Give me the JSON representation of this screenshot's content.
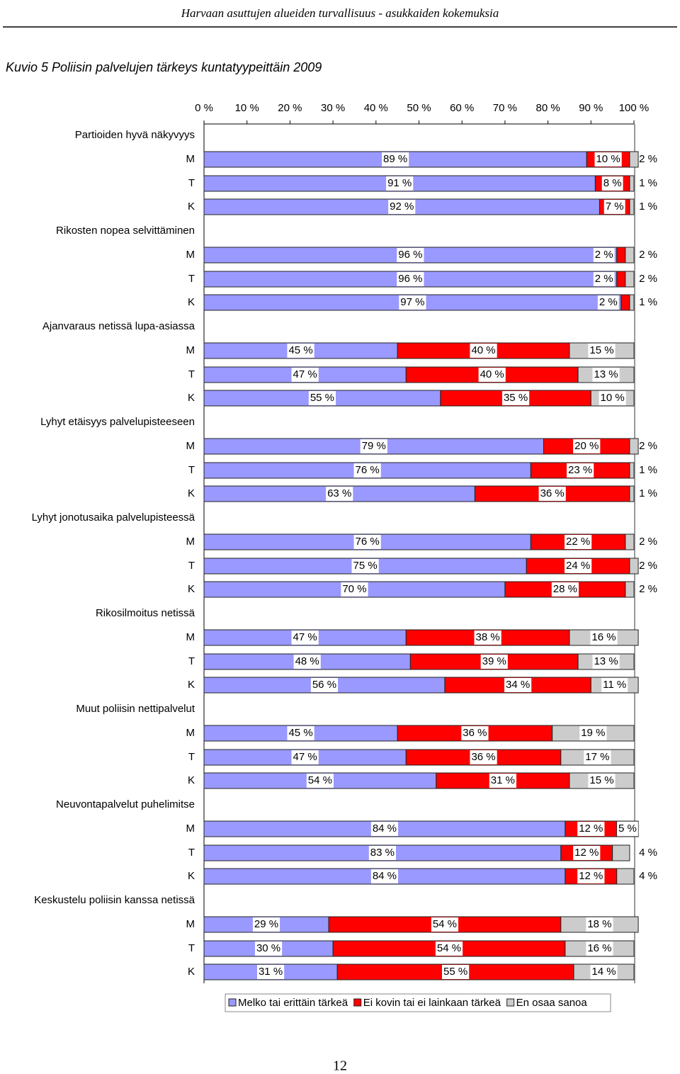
{
  "page_header": "Harvaan asuttujen alueiden turvallisuus - asukkaiden kokemuksia",
  "page_number": "12",
  "chart_data": {
    "type": "stacked-bar-horizontal",
    "title": "Kuvio 5 Poliisin palvelujen tärkeys kuntatyypeittäin 2009",
    "groups": [
      "Partioiden hyvä näkyvyys",
      "Rikosten nopea selvittäminen",
      "Ajanvaraus netissä lupa-asiassa",
      "Lyhyt etäisyys palvelupisteeseen",
      "Lyhyt jonotusaika palvelupisteessä",
      "Rikosilmoitus netissä",
      "Muut poliisin nettipalvelut",
      "Neuvontapalvelut puhelimitse",
      "Keskustelu poliisin kanssa netissä"
    ],
    "categories": [
      "M",
      "T",
      "K",
      "M",
      "T",
      "K",
      "M",
      "T",
      "K",
      "M",
      "T",
      "K",
      "M",
      "T",
      "K",
      "M",
      "T",
      "K",
      "M",
      "T",
      "K",
      "M",
      "T",
      "K",
      "M",
      "T",
      "K"
    ],
    "xlim": [
      0,
      100
    ],
    "xticks": [
      {
        "value": 0,
        "label": "0 %"
      },
      {
        "value": 10,
        "label": "10 %"
      },
      {
        "value": 20,
        "label": "20 %"
      },
      {
        "value": 30,
        "label": "30 %"
      },
      {
        "value": 40,
        "label": "40 %"
      },
      {
        "value": 50,
        "label": "50 %"
      },
      {
        "value": 60,
        "label": "60 %"
      },
      {
        "value": 70,
        "label": "70 %"
      },
      {
        "value": 80,
        "label": "80 %"
      },
      {
        "value": 90,
        "label": "90 %"
      },
      {
        "value": 100,
        "label": "100 %"
      }
    ],
    "series": [
      {
        "name": "Melko tai erittäin tärkeä",
        "color": "#9999ff",
        "values": [
          89,
          91,
          92,
          96,
          96,
          97,
          45,
          47,
          55,
          79,
          76,
          63,
          76,
          75,
          70,
          47,
          48,
          56,
          45,
          47,
          54,
          84,
          83,
          84,
          29,
          30,
          31
        ],
        "value_labels": [
          "89 %",
          "91 %",
          "92 %",
          "96 %",
          "96 %",
          "97 %",
          "45 %",
          "47 %",
          "55 %",
          "79 %",
          "76 %",
          "63 %",
          "76 %",
          "75 %",
          "70 %",
          "47 %",
          "48 %",
          "56 %",
          "45 %",
          "47 %",
          "54 %",
          "84 %",
          "83 %",
          "84 %",
          "29 %",
          "30 %",
          "31 %"
        ]
      },
      {
        "name": "Ei kovin tai ei lainkaan tärkeä",
        "color": "#ff0000",
        "values": [
          10,
          8,
          7,
          2,
          2,
          2,
          40,
          40,
          35,
          20,
          23,
          36,
          22,
          24,
          28,
          38,
          39,
          34,
          36,
          36,
          31,
          12,
          12,
          12,
          54,
          54,
          55
        ],
        "value_labels": [
          "10 %",
          "8 %",
          "7 %",
          "2 %",
          "2 %",
          "2 %",
          "40 %",
          "40 %",
          "35 %",
          "20 %",
          "23 %",
          "36 %",
          "22 %",
          "24 %",
          "28 %",
          "38 %",
          "39 %",
          "34 %",
          "36 %",
          "36 %",
          "31 %",
          "12 %",
          "12 %",
          "12 %",
          "54 %",
          "54 %",
          "55 %"
        ]
      },
      {
        "name": "En osaa sanoa",
        "color": "#cccccc",
        "values": [
          2,
          1,
          1,
          2,
          2,
          1,
          15,
          13,
          10,
          2,
          1,
          1,
          2,
          2,
          2,
          16,
          13,
          11,
          19,
          17,
          15,
          5,
          4,
          4,
          18,
          16,
          14
        ],
        "value_labels": [
          "2 %",
          "1 %",
          "1 %",
          "2 %",
          "2 %",
          "1 %",
          "15 %",
          "13 %",
          "10 %",
          "2 %",
          "1 %",
          "1 %",
          "2 %",
          "2 %",
          "2 %",
          "16 %",
          "13 %",
          "11 %",
          "19 %",
          "17 %",
          "15 %",
          "5 %",
          "4 %",
          "4 %",
          "18 %",
          "16 %",
          "14 %"
        ]
      }
    ]
  }
}
